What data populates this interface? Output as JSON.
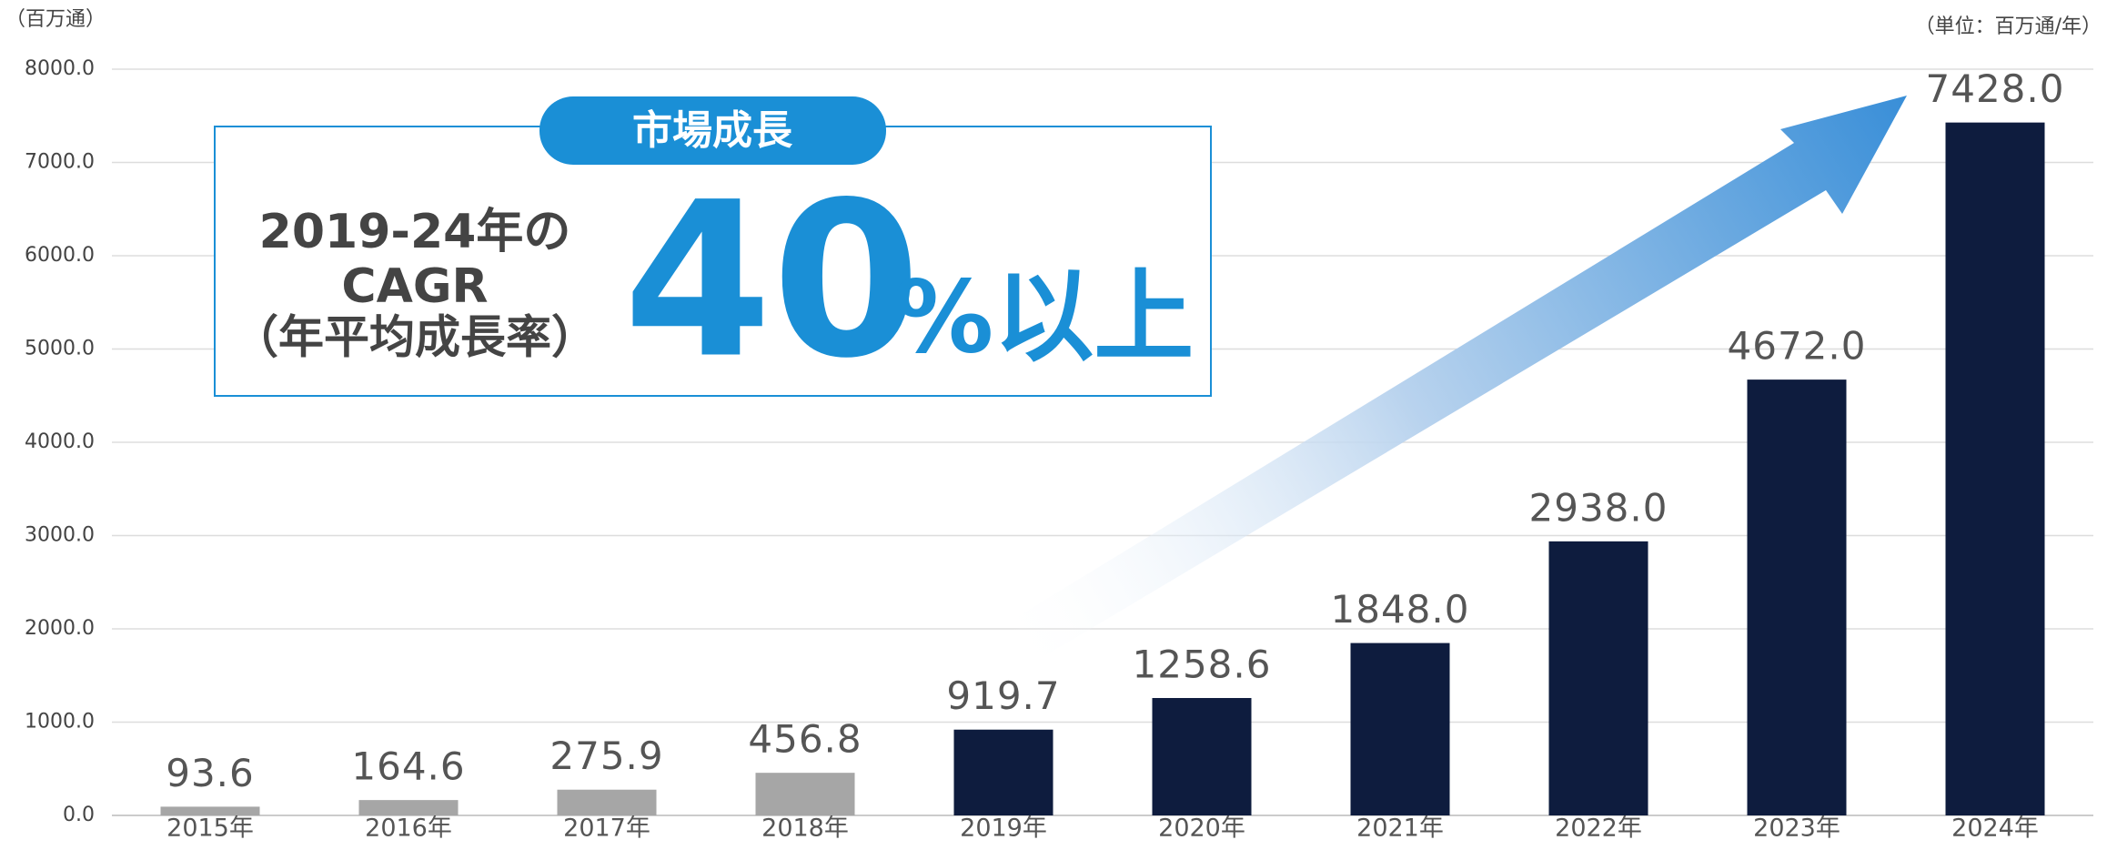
{
  "chart_data": {
    "type": "bar",
    "y_unit": "（百万通）",
    "unit_note": "（単位：百万通/年）",
    "categories": [
      "2015年",
      "2016年",
      "2017年",
      "2018年",
      "2019年",
      "2020年",
      "2021年",
      "2022年",
      "2023年",
      "2024年"
    ],
    "values": [
      93.6,
      164.6,
      275.9,
      456.8,
      919.7,
      1258.6,
      1848.0,
      2938.0,
      4672.0,
      7428.0
    ],
    "value_labels": [
      "93.6",
      "164.6",
      "275.9",
      "456.8",
      "919.7",
      "1258.6",
      "1848.0",
      "2938.0",
      "4672.0",
      "7428.0"
    ],
    "colors": [
      "#a6a6a6",
      "#a6a6a6",
      "#a6a6a6",
      "#a6a6a6",
      "#0e1c3e",
      "#0e1c3e",
      "#0e1c3e",
      "#0e1c3e",
      "#0e1c3e",
      "#0e1c3e"
    ],
    "ylim": [
      0,
      8000
    ],
    "yticks": [
      {
        "value": 0,
        "label": "0.0"
      },
      {
        "value": 1000,
        "label": "1000.0"
      },
      {
        "value": 2000,
        "label": "2000.0"
      },
      {
        "value": 3000,
        "label": "3000.0"
      },
      {
        "value": 4000,
        "label": "4000.0"
      },
      {
        "value": 5000,
        "label": "5000.0"
      },
      {
        "value": 6000,
        "label": "6000.0"
      },
      {
        "value": 7000,
        "label": "7000.0"
      },
      {
        "value": 8000,
        "label": "8000.0"
      }
    ],
    "grid": true,
    "annotation": {
      "badge": "市場成長",
      "line1": "2019-24年の",
      "line2": "CAGR",
      "line3": "（年平均成長率）",
      "big": "40",
      "suffix": "%以上"
    }
  }
}
